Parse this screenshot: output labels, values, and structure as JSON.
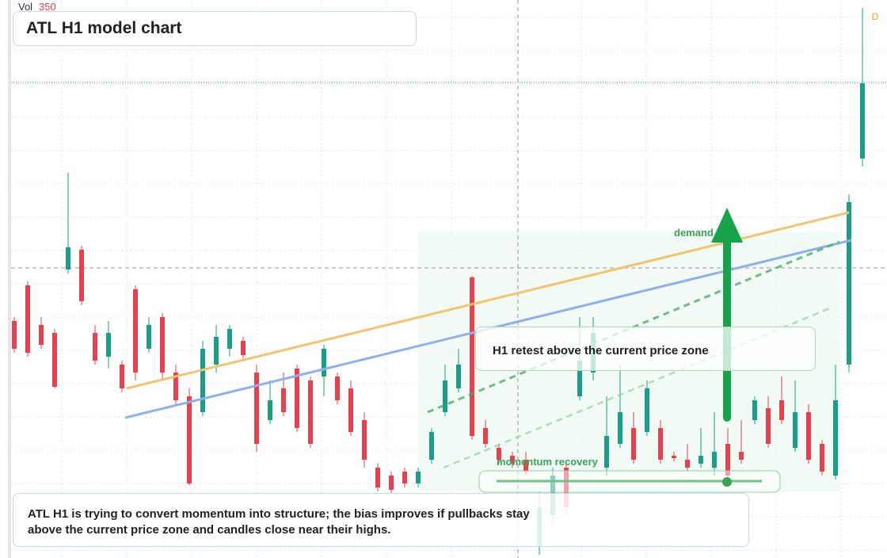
{
  "chart_data": {
    "type": "candlestick",
    "title": "ATL H1 model chart",
    "volume_label": "Vol",
    "volume_value": 350,
    "badge": "D",
    "annotations": {
      "demand": "demand side",
      "retest": "H1 retest above the current price zone",
      "momentum": "momentum recovery",
      "note": "ATL H1 is trying to convert momentum into structure; the bias improves if pullbacks stay above the current price zone and candles close near their highs."
    },
    "up_color": "#1a9e86",
    "down_color": "#e8404e",
    "ylim": [
      0,
      704
    ],
    "open": [
      299,
      344,
      294,
      284,
      364,
      389,
      284,
      254,
      244,
      339,
      264,
      304,
      234,
      204,
      184,
      244,
      264,
      274,
      234,
      174,
      214,
      239,
      224,
      229,
      229,
      214,
      174,
      114,
      104,
      109,
      94,
      124,
      184,
      214,
      354,
      164,
      139,
      129,
      124,
      14,
      54,
      114,
      204,
      234,
      114,
      144,
      164,
      159,
      164,
      129,
      124,
      119,
      114,
      144,
      134,
      174,
      189,
      199,
      139,
      184,
      144,
      104,
      244,
      504
    ],
    "high": [
      304,
      349,
      304,
      289,
      486,
      394,
      294,
      299,
      249,
      344,
      304,
      309,
      244,
      214,
      274,
      294,
      294,
      279,
      244,
      224,
      234,
      244,
      229,
      269,
      234,
      224,
      184,
      119,
      109,
      114,
      114,
      164,
      244,
      264,
      356,
      174,
      144,
      134,
      134,
      84,
      114,
      119,
      304,
      304,
      204,
      244,
      184,
      224,
      174,
      134,
      144,
      164,
      184,
      164,
      174,
      204,
      204,
      229,
      224,
      194,
      149,
      244,
      459,
      694
    ],
    "low": [
      259,
      254,
      264,
      214,
      359,
      319,
      244,
      239,
      209,
      224,
      259,
      224,
      194,
      92,
      179,
      234,
      254,
      252,
      134,
      169,
      179,
      159,
      139,
      204,
      194,
      154,
      114,
      84,
      82,
      89,
      89,
      119,
      179,
      209,
      149,
      139,
      119,
      114,
      104,
      4,
      44,
      54,
      199,
      224,
      104,
      139,
      119,
      154,
      119,
      122,
      109,
      114,
      104,
      99,
      119,
      169,
      139,
      169,
      134,
      119,
      104,
      99,
      234,
      494
    ],
    "close": [
      264,
      259,
      269,
      216,
      392,
      324,
      249,
      284,
      214,
      234,
      294,
      234,
      199,
      94,
      264,
      279,
      289,
      256,
      144,
      199,
      184,
      164,
      144,
      264,
      199,
      159,
      124,
      89,
      86,
      94,
      109,
      159,
      224,
      244,
      154,
      144,
      124,
      119,
      109,
      64,
      104,
      64,
      249,
      284,
      154,
      184,
      124,
      214,
      124,
      126,
      114,
      129,
      134,
      104,
      124,
      199,
      144,
      174,
      184,
      124,
      109,
      199,
      449,
      599
    ]
  }
}
